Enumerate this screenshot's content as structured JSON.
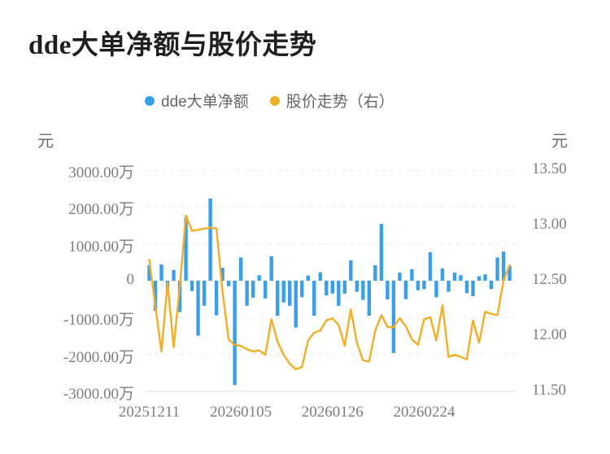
{
  "title": "dde大单净额与股价走势",
  "legend": {
    "items": [
      {
        "label": "dde大单净额",
        "color": "#3b9ee8"
      },
      {
        "label": "股价走势（右）",
        "color": "#f2ae25"
      }
    ]
  },
  "left_axis": {
    "unit": "元",
    "tick_labels": [
      "3000.00万",
      "2000.00万",
      "1000.00万",
      "0",
      "-1000.00万",
      "-2000.00万",
      "-3000.00万"
    ]
  },
  "right_axis": {
    "unit": "元",
    "tick_labels": [
      "13.50",
      "13.00",
      "12.50",
      "12.00",
      "11.50"
    ]
  },
  "x_axis": {
    "tick_labels": [
      "20251211",
      "20260105",
      "20260126",
      "20260224"
    ],
    "tick_indices": [
      0,
      15,
      30,
      45
    ]
  },
  "colors": {
    "bar": "#3b9ee8",
    "line": "#f2ae25",
    "grid": "#e9e9e9",
    "axis_line": "#dddddd",
    "axis_text": "#7d7d7d",
    "legend_text": "#666666",
    "title_text": "#1f1f1f",
    "background": "#ffffff"
  },
  "chart_data": {
    "type": "bar",
    "combo": "dual-axis bar + line",
    "title": "dde大单净额与股价走势",
    "n_points": 60,
    "x_tick_labels": [
      "20251211",
      "20260105",
      "20260126",
      "20260224"
    ],
    "x_tick_indices": [
      0,
      15,
      30,
      45
    ],
    "left_ylabel": "元",
    "right_ylabel": "元",
    "left_ylim_wan": [
      -3000,
      3000
    ],
    "right_ylim_yuan": [
      11.5,
      13.5
    ],
    "grid": "horizontal dashed",
    "legend_position": "top-center",
    "series": [
      {
        "name": "dde大单净额",
        "type": "bar",
        "yaxis": "left",
        "unit": "万元",
        "color": "#3b9ee8",
        "values_wan": [
          420,
          -820,
          440,
          -230,
          290,
          -850,
          1700,
          -280,
          -1490,
          -680,
          2230,
          -940,
          350,
          -150,
          -2830,
          630,
          -680,
          -460,
          150,
          -480,
          660,
          -950,
          -590,
          -680,
          -1270,
          -450,
          140,
          -950,
          230,
          -400,
          -350,
          -680,
          -350,
          550,
          -300,
          -520,
          -950,
          420,
          1540,
          -510,
          -1960,
          220,
          -500,
          310,
          -260,
          -230,
          770,
          -450,
          330,
          -300,
          220,
          150,
          -340,
          -420,
          120,
          170,
          -230,
          630,
          790,
          400
        ]
      },
      {
        "name": "股价走势（右）",
        "type": "line",
        "yaxis": "right",
        "unit": "元",
        "color": "#f2ae25",
        "values_yuan": [
          12.69,
          12.27,
          11.86,
          12.48,
          11.9,
          12.45,
          13.09,
          12.95,
          12.96,
          12.97,
          12.98,
          12.97,
          12.4,
          11.97,
          11.92,
          11.91,
          11.88,
          11.86,
          11.87,
          11.83,
          12.15,
          11.95,
          11.83,
          11.75,
          11.7,
          11.72,
          11.96,
          12.03,
          12.05,
          12.14,
          12.16,
          12.1,
          11.91,
          12.24,
          11.94,
          11.78,
          11.77,
          12.05,
          12.19,
          12.08,
          12.08,
          12.16,
          12.09,
          11.97,
          11.92,
          12.15,
          12.17,
          11.96,
          12.28,
          11.81,
          11.83,
          11.81,
          11.79,
          12.14,
          11.94,
          12.22,
          12.2,
          12.19,
          12.5,
          12.64
        ]
      }
    ]
  }
}
